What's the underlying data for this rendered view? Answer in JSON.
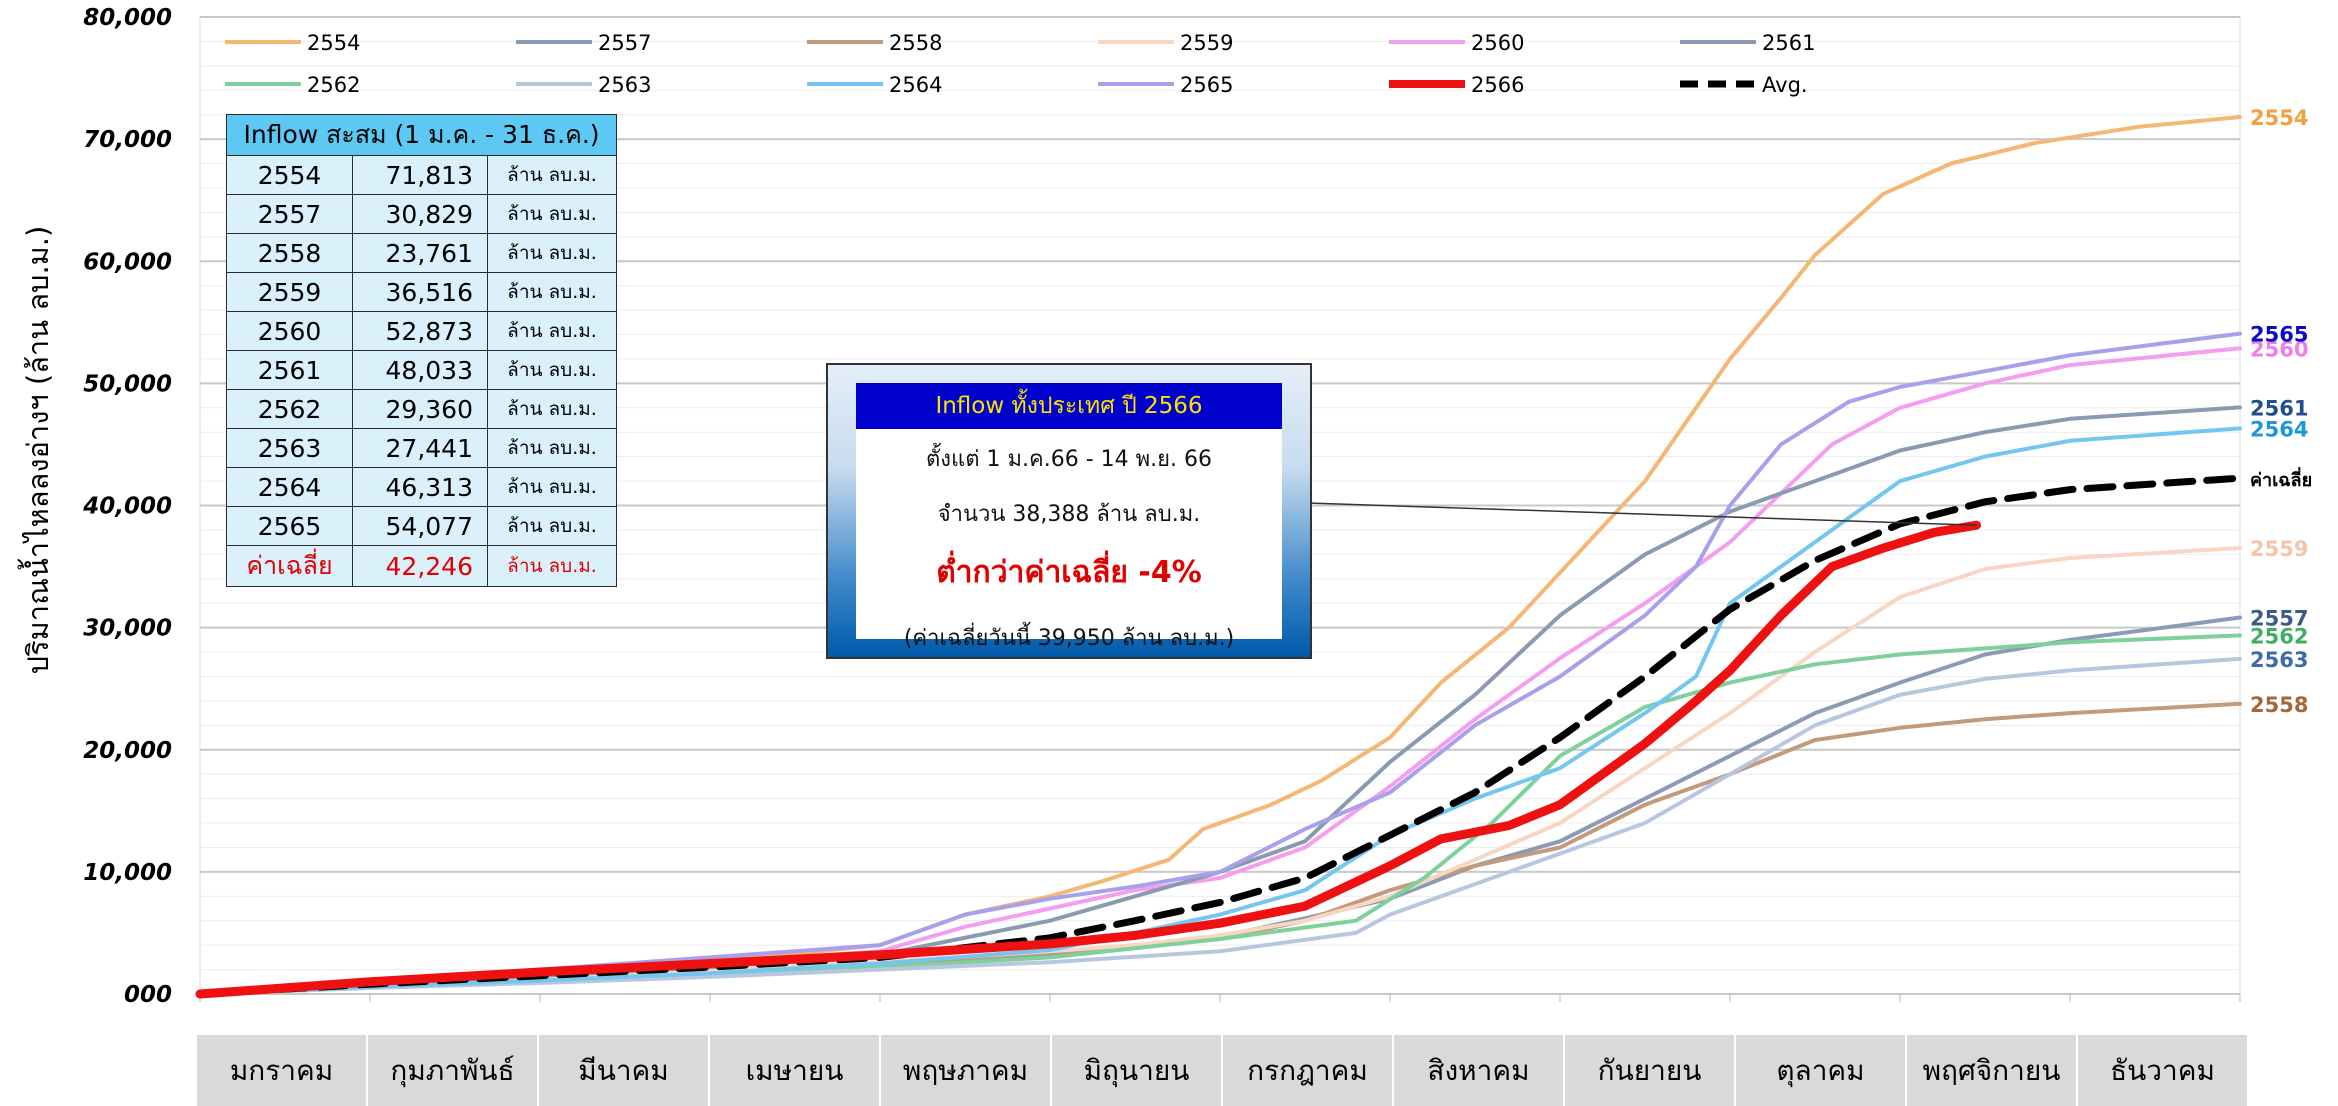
{
  "chart_data": {
    "type": "line",
    "ylabel": "ปริมาณน้ำไหลลงอ่างฯ (ล้าน ลบ.ม.)",
    "ylim": [
      0,
      80000
    ],
    "yticks": [
      "000",
      "10,000",
      "20,000",
      "30,000",
      "40,000",
      "50,000",
      "60,000",
      "70,000",
      "80,000"
    ],
    "x_unit": "month index (0 = 1 Jan, 12 = 31 Dec)",
    "months": [
      "มกราคม",
      "กุมภาพันธ์",
      "มีนาคม",
      "เมษายน",
      "พฤษภาคม",
      "มิถุนายน",
      "กรกฎาคม",
      "สิงหาคม",
      "กันยายน",
      "ตุลาคม",
      "พฤศจิกายน",
      "ธันวาคม"
    ],
    "grid": true,
    "legend_position": "top-left",
    "series": [
      {
        "name": "2554",
        "color": "#f5b774",
        "width": 4,
        "end_label": "2554",
        "label_color": "#f0a040",
        "points": [
          [
            0,
            0
          ],
          [
            1,
            1000
          ],
          [
            2,
            1800
          ],
          [
            3,
            2600
          ],
          [
            4,
            4000
          ],
          [
            4.5,
            6500
          ],
          [
            5,
            8000
          ],
          [
            5.3,
            9200
          ],
          [
            5.7,
            11000
          ],
          [
            5.9,
            13500
          ],
          [
            6.3,
            15500
          ],
          [
            6.6,
            17500
          ],
          [
            7,
            21000
          ],
          [
            7.3,
            25500
          ],
          [
            7.7,
            30000
          ],
          [
            8,
            34500
          ],
          [
            8.5,
            42000
          ],
          [
            9,
            52000
          ],
          [
            9.3,
            57000
          ],
          [
            9.5,
            60500
          ],
          [
            9.9,
            65500
          ],
          [
            10.3,
            68000
          ],
          [
            10.8,
            69700
          ],
          [
            11.4,
            71000
          ],
          [
            12,
            71813
          ]
        ]
      },
      {
        "name": "2557",
        "color": "#8a9bb5",
        "width": 4,
        "end_label": "2557",
        "label_color": "#3d5b8a",
        "points": [
          [
            0,
            0
          ],
          [
            1,
            700
          ],
          [
            2,
            1300
          ],
          [
            3,
            1900
          ],
          [
            4,
            2500
          ],
          [
            5,
            3300
          ],
          [
            5.5,
            4000
          ],
          [
            6,
            4700
          ],
          [
            6.5,
            6200
          ],
          [
            7,
            7800
          ],
          [
            7.5,
            10500
          ],
          [
            8,
            12500
          ],
          [
            8.5,
            16000
          ],
          [
            9,
            19500
          ],
          [
            9.5,
            23000
          ],
          [
            10,
            25500
          ],
          [
            10.5,
            27800
          ],
          [
            11,
            29000
          ],
          [
            11.5,
            29900
          ],
          [
            12,
            30829
          ]
        ]
      },
      {
        "name": "2558",
        "color": "#c39a7a",
        "width": 4,
        "end_label": "2558",
        "label_color": "#a0683c",
        "points": [
          [
            0,
            0
          ],
          [
            1,
            600
          ],
          [
            2,
            1200
          ],
          [
            3,
            1800
          ],
          [
            4,
            2500
          ],
          [
            5,
            3400
          ],
          [
            5.5,
            3900
          ],
          [
            6,
            4500
          ],
          [
            6.5,
            6000
          ],
          [
            7,
            8500
          ],
          [
            7.5,
            10500
          ],
          [
            8,
            12000
          ],
          [
            8.5,
            15500
          ],
          [
            9,
            18000
          ],
          [
            9.5,
            20800
          ],
          [
            10,
            21800
          ],
          [
            10.5,
            22500
          ],
          [
            11,
            23000
          ],
          [
            12,
            23761
          ]
        ]
      },
      {
        "name": "2559",
        "color": "#f7d6c4",
        "width": 4,
        "end_label": "2559",
        "label_color": "#f5c5a8",
        "points": [
          [
            0,
            0
          ],
          [
            1,
            700
          ],
          [
            2,
            1300
          ],
          [
            3,
            1900
          ],
          [
            4,
            2600
          ],
          [
            5,
            3500
          ],
          [
            5.5,
            4000
          ],
          [
            6,
            4800
          ],
          [
            6.5,
            6000
          ],
          [
            7,
            8000
          ],
          [
            7.5,
            11000
          ],
          [
            8,
            14000
          ],
          [
            8.5,
            18500
          ],
          [
            9,
            23000
          ],
          [
            9.5,
            28000
          ],
          [
            10,
            32500
          ],
          [
            10.5,
            34800
          ],
          [
            11,
            35700
          ],
          [
            12,
            36516
          ]
        ]
      },
      {
        "name": "2560",
        "color": "#f49ef0",
        "width": 4,
        "end_label": "2560",
        "label_color": "#f07de8",
        "points": [
          [
            0,
            0
          ],
          [
            1,
            900
          ],
          [
            2,
            1700
          ],
          [
            3,
            2500
          ],
          [
            4,
            3500
          ],
          [
            4.5,
            5500
          ],
          [
            5,
            7000
          ],
          [
            5.5,
            8500
          ],
          [
            6,
            9500
          ],
          [
            6.5,
            12000
          ],
          [
            7,
            17000
          ],
          [
            7.5,
            22500
          ],
          [
            8,
            27500
          ],
          [
            8.5,
            32000
          ],
          [
            9,
            37000
          ],
          [
            9.3,
            41000
          ],
          [
            9.6,
            45000
          ],
          [
            10,
            48000
          ],
          [
            10.5,
            50000
          ],
          [
            11,
            51500
          ],
          [
            12,
            52873
          ]
        ]
      },
      {
        "name": "2561",
        "color": "#8a9ab2",
        "width": 4,
        "end_label": "2561",
        "label_color": "#1f4f8f",
        "points": [
          [
            0,
            0
          ],
          [
            1,
            800
          ],
          [
            2,
            1500
          ],
          [
            3,
            2200
          ],
          [
            4,
            3200
          ],
          [
            5,
            6000
          ],
          [
            5.5,
            8000
          ],
          [
            6,
            10000
          ],
          [
            6.5,
            12500
          ],
          [
            7,
            19000
          ],
          [
            7.5,
            24500
          ],
          [
            8,
            31000
          ],
          [
            8.5,
            36000
          ],
          [
            9,
            39500
          ],
          [
            9.5,
            42000
          ],
          [
            10,
            44500
          ],
          [
            10.5,
            46000
          ],
          [
            11,
            47100
          ],
          [
            12,
            48033
          ]
        ]
      },
      {
        "name": "2562",
        "color": "#7fd09a",
        "width": 4,
        "end_label": "2562",
        "label_color": "#3fae60",
        "points": [
          [
            0,
            0
          ],
          [
            1,
            500
          ],
          [
            2,
            1000
          ],
          [
            3,
            1600
          ],
          [
            4,
            2200
          ],
          [
            5,
            3000
          ],
          [
            6,
            4500
          ],
          [
            6.8,
            6000
          ],
          [
            7.2,
            9500
          ],
          [
            7.6,
            14000
          ],
          [
            8,
            19500
          ],
          [
            8.5,
            23500
          ],
          [
            9,
            25500
          ],
          [
            9.5,
            27000
          ],
          [
            10,
            27800
          ],
          [
            10.5,
            28300
          ],
          [
            11,
            28800
          ],
          [
            12,
            29360
          ]
        ]
      },
      {
        "name": "2563",
        "color": "#b8c7e0",
        "width": 4,
        "end_label": "2563",
        "label_color": "#3d6aa8",
        "points": [
          [
            0,
            0
          ],
          [
            1,
            500
          ],
          [
            2,
            900
          ],
          [
            3,
            1400
          ],
          [
            4,
            2000
          ],
          [
            5,
            2600
          ],
          [
            6,
            3500
          ],
          [
            6.8,
            5000
          ],
          [
            7,
            6500
          ],
          [
            7.5,
            9000
          ],
          [
            8,
            11500
          ],
          [
            8.5,
            14000
          ],
          [
            9,
            18000
          ],
          [
            9.5,
            22000
          ],
          [
            10,
            24500
          ],
          [
            10.5,
            25800
          ],
          [
            11,
            26500
          ],
          [
            12,
            27441
          ]
        ]
      },
      {
        "name": "2564",
        "color": "#74c6f0",
        "width": 4,
        "end_label": "2564",
        "label_color": "#1b98d8",
        "points": [
          [
            0,
            0
          ],
          [
            1,
            600
          ],
          [
            2,
            1100
          ],
          [
            3,
            1700
          ],
          [
            4,
            2500
          ],
          [
            5,
            3600
          ],
          [
            5.5,
            5000
          ],
          [
            6,
            6500
          ],
          [
            6.5,
            8500
          ],
          [
            7,
            13000
          ],
          [
            7.5,
            16000
          ],
          [
            8,
            18500
          ],
          [
            8.5,
            23000
          ],
          [
            8.8,
            26000
          ],
          [
            9,
            32000
          ],
          [
            9.5,
            37000
          ],
          [
            10,
            42000
          ],
          [
            10.5,
            44000
          ],
          [
            11,
            45300
          ],
          [
            12,
            46313
          ]
        ]
      },
      {
        "name": "2565",
        "color": "#a9a0ec",
        "width": 4,
        "end_label": "2565",
        "label_color": "#0a0ac8",
        "points": [
          [
            0,
            0
          ],
          [
            1,
            1000
          ],
          [
            2,
            2000
          ],
          [
            3,
            3000
          ],
          [
            4,
            4000
          ],
          [
            4.5,
            6500
          ],
          [
            5,
            7800
          ],
          [
            5.5,
            8800
          ],
          [
            6,
            10000
          ],
          [
            6.5,
            13500
          ],
          [
            7,
            16500
          ],
          [
            7.5,
            22000
          ],
          [
            8,
            26000
          ],
          [
            8.5,
            31000
          ],
          [
            8.8,
            35000
          ],
          [
            9,
            40000
          ],
          [
            9.3,
            45000
          ],
          [
            9.7,
            48500
          ],
          [
            10,
            49700
          ],
          [
            10.5,
            51000
          ],
          [
            11,
            52300
          ],
          [
            12,
            54077
          ]
        ]
      },
      {
        "name": "2566",
        "color": "#ee1111",
        "width": 9,
        "end_label": "",
        "label_color": "#ee1111",
        "points": [
          [
            0,
            0
          ],
          [
            1,
            1000
          ],
          [
            2,
            1800
          ],
          [
            3,
            2500
          ],
          [
            4,
            3200
          ],
          [
            5,
            4100
          ],
          [
            5.5,
            4800
          ],
          [
            6,
            5800
          ],
          [
            6.5,
            7200
          ],
          [
            7,
            10500
          ],
          [
            7.3,
            12700
          ],
          [
            7.7,
            13800
          ],
          [
            8,
            15500
          ],
          [
            8.5,
            20500
          ],
          [
            8.8,
            24000
          ],
          [
            9,
            26500
          ],
          [
            9.3,
            31000
          ],
          [
            9.6,
            35000
          ],
          [
            9.9,
            36500
          ],
          [
            10.2,
            37800
          ],
          [
            10.45,
            38388
          ]
        ]
      },
      {
        "name": "Avg.",
        "color": "#000000",
        "width": 7,
        "dash": "26,14",
        "end_label": "ค่าเฉลี่ย",
        "label_color": "#000000",
        "points": [
          [
            0,
            0
          ],
          [
            1,
            800
          ],
          [
            2,
            1500
          ],
          [
            3,
            2200
          ],
          [
            4,
            3000
          ],
          [
            5,
            4600
          ],
          [
            5.5,
            6000
          ],
          [
            6,
            7500
          ],
          [
            6.5,
            9500
          ],
          [
            7,
            13000
          ],
          [
            7.5,
            16500
          ],
          [
            8,
            21000
          ],
          [
            8.5,
            26000
          ],
          [
            9,
            31500
          ],
          [
            9.5,
            35500
          ],
          [
            10,
            38500
          ],
          [
            10.5,
            40300
          ],
          [
            11,
            41300
          ],
          [
            12,
            42246
          ]
        ]
      }
    ],
    "annotation": {
      "target_series": "2566",
      "target_month": 10.45,
      "target_value": 38388
    }
  },
  "table": {
    "header": "Inflow สะสม (1 ม.ค. - 31 ธ.ค.)",
    "rows": [
      {
        "year": "2554",
        "value": "71,813",
        "unit": "ล้าน ลบ.ม."
      },
      {
        "year": "2557",
        "value": "30,829",
        "unit": "ล้าน ลบ.ม."
      },
      {
        "year": "2558",
        "value": "23,761",
        "unit": "ล้าน ลบ.ม."
      },
      {
        "year": "2559",
        "value": "36,516",
        "unit": "ล้าน ลบ.ม."
      },
      {
        "year": "2560",
        "value": "52,873",
        "unit": "ล้าน ลบ.ม."
      },
      {
        "year": "2561",
        "value": "48,033",
        "unit": "ล้าน ลบ.ม."
      },
      {
        "year": "2562",
        "value": "29,360",
        "unit": "ล้าน ลบ.ม."
      },
      {
        "year": "2563",
        "value": "27,441",
        "unit": "ล้าน ลบ.ม."
      },
      {
        "year": "2564",
        "value": "46,313",
        "unit": "ล้าน ลบ.ม."
      },
      {
        "year": "2565",
        "value": "54,077",
        "unit": "ล้าน ลบ.ม."
      }
    ],
    "avg_row": {
      "year": "ค่าเฉลี่ย",
      "value": "42,246",
      "unit": "ล้าน ลบ.ม."
    }
  },
  "info_box": {
    "title": "Inflow ทั้งประเทศ ปี 2566",
    "line1": "ตั้งแต่ 1 ม.ค.66 - 14 พ.ย. 66",
    "line2": "จำนวน 38,388 ล้าน ลบ.ม.",
    "line3": "ต่ำกว่าค่าเฉลี่ย -4%",
    "line4": "(ค่าเฉลี่ยวันนี้ 39,950 ล้าน ลบ.ม.)"
  }
}
